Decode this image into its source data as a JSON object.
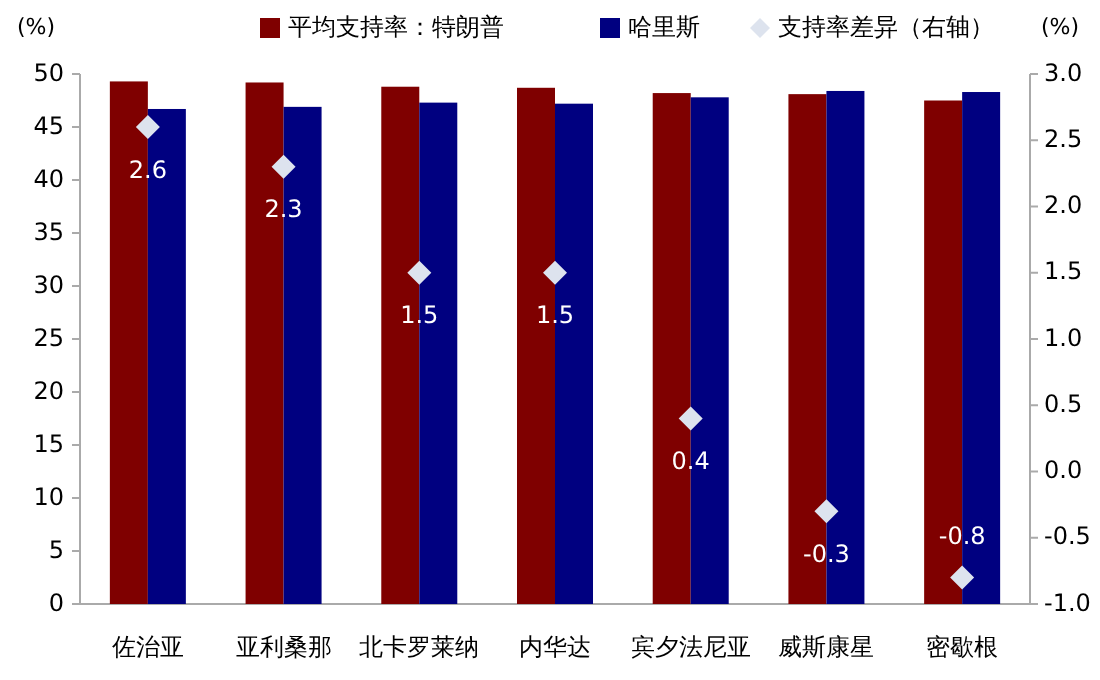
{
  "chart_data": {
    "type": "bar",
    "ylabel": "(%)",
    "y2label": "(%)",
    "categories": [
      "佐治亚",
      "亚利桑那",
      "北卡罗莱纳",
      "内华达",
      "宾夕法尼亚",
      "威斯康星",
      "密歇根"
    ],
    "series": [
      {
        "name": "平均支持率：特朗普",
        "color": "#7f0000",
        "values": [
          49.3,
          49.2,
          48.8,
          48.7,
          48.2,
          48.1,
          47.5
        ]
      },
      {
        "name": "哈里斯",
        "color": "#000080",
        "values": [
          46.7,
          46.9,
          47.3,
          47.2,
          47.8,
          48.4,
          48.3
        ]
      },
      {
        "name": "支持率差异（右轴）",
        "type": "scatter",
        "axis": "y2",
        "marker": "diamond",
        "color": "#dde3ee",
        "values": [
          2.6,
          2.3,
          1.5,
          1.5,
          0.4,
          -0.3,
          -0.8
        ],
        "value_labels": [
          "2.6",
          "2.3",
          "1.5",
          "1.5",
          "0.4",
          "-0.3",
          "-0.8"
        ]
      }
    ],
    "ylim": [
      0,
      50
    ],
    "yticks": [
      0,
      5,
      10,
      15,
      20,
      25,
      30,
      35,
      40,
      45,
      50
    ],
    "y2lim": [
      -1,
      3
    ],
    "y2ticks": [
      {
        "value": -1,
        "label": "-1.0"
      },
      {
        "value": -0.5,
        "label": "-0.5"
      },
      {
        "value": 0,
        "label": "0.0"
      },
      {
        "value": 0.5,
        "label": "0.5"
      },
      {
        "value": 1,
        "label": "1.0"
      },
      {
        "value": 1.5,
        "label": "1.5"
      },
      {
        "value": 2,
        "label": "2.0"
      },
      {
        "value": 2.5,
        "label": "2.5"
      },
      {
        "value": 3,
        "label": "3.0"
      }
    ],
    "legend": "top",
    "grid": false
  }
}
